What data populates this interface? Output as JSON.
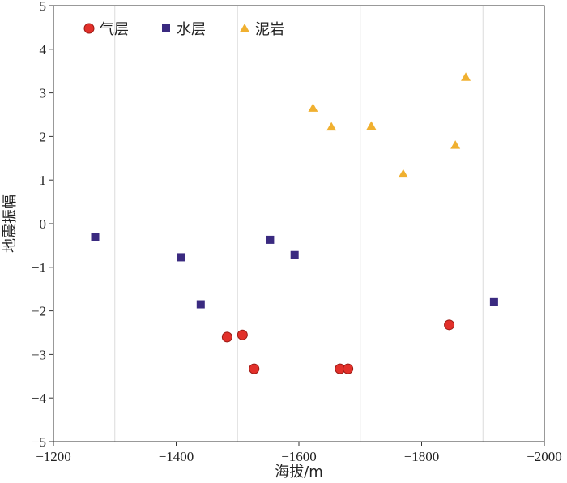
{
  "chart_data": {
    "type": "scatter",
    "title": "",
    "xlabel": "海拔/m",
    "ylabel": "地震振幅",
    "xlim": [
      -1200,
      -2000
    ],
    "ylim": [
      -5,
      5
    ],
    "xticks": [
      -1200,
      -1400,
      -1600,
      -1800,
      -2000
    ],
    "yticks": [
      -5,
      -4,
      -3,
      -2,
      -1,
      0,
      1,
      2,
      3,
      4,
      5
    ],
    "x_reversed": true,
    "grid": "vertical",
    "legend": "top-left",
    "series": [
      {
        "name": "气层",
        "marker": "circle",
        "color": "#e2302a",
        "points": [
          {
            "x": -1483,
            "y": -2.6
          },
          {
            "x": -1508,
            "y": -2.55
          },
          {
            "x": -1527,
            "y": -3.33
          },
          {
            "x": -1667,
            "y": -3.33
          },
          {
            "x": -1680,
            "y": -3.33
          },
          {
            "x": -1845,
            "y": -2.32
          }
        ]
      },
      {
        "name": "水层",
        "marker": "square",
        "color": "#3a2a80",
        "points": [
          {
            "x": -1268,
            "y": -0.3
          },
          {
            "x": -1408,
            "y": -0.77
          },
          {
            "x": -1440,
            "y": -1.85
          },
          {
            "x": -1553,
            "y": -0.37
          },
          {
            "x": -1593,
            "y": -0.72
          },
          {
            "x": -1918,
            "y": -1.8
          }
        ]
      },
      {
        "name": "泥岩",
        "marker": "triangle",
        "color": "#f0b030",
        "points": [
          {
            "x": -1623,
            "y": 2.65
          },
          {
            "x": -1653,
            "y": 2.22
          },
          {
            "x": -1718,
            "y": 2.24
          },
          {
            "x": -1770,
            "y": 1.14
          },
          {
            "x": -1855,
            "y": 1.8
          },
          {
            "x": -1872,
            "y": 3.36
          }
        ]
      }
    ]
  }
}
